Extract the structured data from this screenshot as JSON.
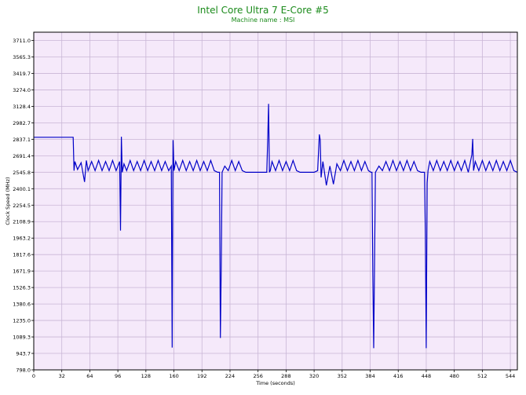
{
  "title": "Intel Core Ultra 7 E-Core #5",
  "subtitle": "Machine name : MSI",
  "chart_data": {
    "type": "line",
    "title": "Intel Core Ultra 7 E-Core #5",
    "subtitle": "Machine name : MSI",
    "xlabel": "Time (seconds)",
    "ylabel": "Clock Speed (MHz)",
    "xlim": [
      0,
      552
    ],
    "ylim": [
      798.0,
      3784.0
    ],
    "xticks": [
      0,
      32,
      64,
      96,
      128,
      160,
      192,
      224,
      256,
      288,
      320,
      352,
      384,
      416,
      448,
      480,
      512,
      544
    ],
    "yticks": [
      798.0,
      943.7,
      1089.3,
      1235.0,
      1380.6,
      1526.3,
      1671.9,
      1817.6,
      1963.2,
      2108.9,
      2254.5,
      2400.1,
      2545.8,
      2691.4,
      2837.1,
      2982.7,
      3128.4,
      3274.0,
      3419.7,
      3565.3,
      3711.0
    ],
    "grid": true,
    "background": "#f5e9fa",
    "grid_color": "#c9b6d6",
    "line_color": "#0000c8",
    "title_color": "#1a8a1a",
    "series": [
      {
        "x": [
          0,
          45,
          46,
          47,
          50,
          54,
          58,
          60,
          62,
          66,
          70,
          74,
          78,
          82,
          86,
          90,
          94,
          98,
          99,
          100,
          101,
          103,
          106,
          110,
          114,
          118,
          122,
          126,
          130,
          134,
          138,
          142,
          146,
          150,
          154,
          157,
          158,
          158.5,
          159,
          160,
          162,
          166,
          170,
          174,
          178,
          182,
          186,
          190,
          194,
          198,
          202,
          206,
          210,
          212,
          213,
          214,
          215,
          218,
          222,
          226,
          230,
          234,
          238,
          242,
          246,
          250,
          254,
          258,
          262,
          266,
          267,
          268,
          269,
          270,
          272,
          276,
          280,
          284,
          288,
          292,
          296,
          300,
          304,
          308,
          312,
          316,
          320,
          324,
          326,
          327,
          328,
          330,
          334,
          338,
          342,
          346,
          350,
          354,
          358,
          362,
          366,
          370,
          374,
          378,
          382,
          385,
          386,
          387,
          388,
          390,
          394,
          398,
          402,
          406,
          410,
          414,
          418,
          422,
          426,
          430,
          434,
          438,
          442,
          446,
          447,
          448,
          449,
          450,
          452,
          456,
          460,
          464,
          468,
          472,
          476,
          480,
          484,
          488,
          492,
          496,
          500,
          501,
          502,
          504,
          508,
          512,
          516,
          520,
          524,
          528,
          532,
          536,
          540,
          544,
          548,
          552
        ],
        "y": [
          2855,
          2855,
          2560,
          2640,
          2570,
          2630,
          2460,
          2650,
          2560,
          2640,
          2560,
          2650,
          2560,
          2640,
          2560,
          2650,
          2560,
          2640,
          2030,
          2860,
          2545,
          2620,
          2560,
          2650,
          2560,
          2640,
          2560,
          2650,
          2560,
          2640,
          2560,
          2650,
          2560,
          2640,
          2560,
          2600,
          995,
          2100,
          2830,
          2560,
          2640,
          2560,
          2650,
          2560,
          2640,
          2560,
          2650,
          2560,
          2640,
          2560,
          2650,
          2560,
          2545,
          2545,
          1080,
          1700,
          2545,
          2600,
          2560,
          2650,
          2560,
          2640,
          2560,
          2545,
          2545,
          2545,
          2545,
          2545,
          2545,
          2545,
          2830,
          3150,
          2545,
          2560,
          2640,
          2560,
          2650,
          2560,
          2640,
          2560,
          2650,
          2560,
          2545,
          2545,
          2545,
          2545,
          2545,
          2560,
          2880,
          2830,
          2500,
          2640,
          2430,
          2600,
          2440,
          2620,
          2560,
          2650,
          2560,
          2640,
          2560,
          2650,
          2560,
          2640,
          2560,
          2545,
          2545,
          1630,
          990,
          2545,
          2600,
          2560,
          2640,
          2560,
          2650,
          2560,
          2640,
          2560,
          2650,
          2560,
          2640,
          2560,
          2545,
          2545,
          2000,
          990,
          2450,
          2560,
          2640,
          2560,
          2650,
          2560,
          2640,
          2560,
          2650,
          2560,
          2640,
          2560,
          2650,
          2545,
          2700,
          2840,
          2560,
          2640,
          2560,
          2650,
          2560,
          2640,
          2560,
          2650,
          2560,
          2640,
          2560,
          2650,
          2560,
          2545
        ]
      }
    ]
  }
}
